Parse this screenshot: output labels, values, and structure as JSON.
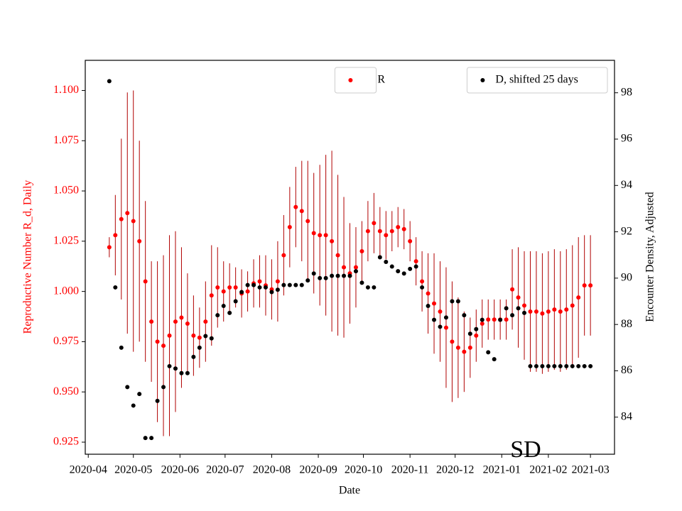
{
  "chart_data": {
    "type": "scatter",
    "annotation": "SD",
    "xlabel": "Date",
    "ylabel": "Reproductive Number R_d, Daily",
    "y2label": "Encounter Density, Adjusted",
    "xlim": [
      "2020-03-30",
      "2021-03-17"
    ],
    "xticks": [
      {
        "value": "2020-04-01",
        "label": "2020-04"
      },
      {
        "value": "2020-05-01",
        "label": "2020-05"
      },
      {
        "value": "2020-06-01",
        "label": "2020-06"
      },
      {
        "value": "2020-07-01",
        "label": "2020-07"
      },
      {
        "value": "2020-08-01",
        "label": "2020-08"
      },
      {
        "value": "2020-09-01",
        "label": "2020-09"
      },
      {
        "value": "2020-10-01",
        "label": "2020-10"
      },
      {
        "value": "2020-11-01",
        "label": "2020-11"
      },
      {
        "value": "2020-12-01",
        "label": "2020-12"
      },
      {
        "value": "2021-01-01",
        "label": "2021-01"
      },
      {
        "value": "2021-02-01",
        "label": "2021-02"
      },
      {
        "value": "2021-03-01",
        "label": "2021-03"
      }
    ],
    "ylim": [
      0.919,
      1.115
    ],
    "yticks": [
      0.925,
      {
        "value": 0.95,
        "label": "0.950"
      },
      0.975,
      {
        "value": 1,
        "label": "1.000"
      },
      1.025,
      {
        "value": 1.05,
        "label": "1.050"
      },
      1.075,
      {
        "value": 1.1,
        "label": "1.100"
      }
    ],
    "y2lim": [
      82.4,
      99.4
    ],
    "y2ticks": [
      84,
      86,
      88,
      90,
      92,
      94,
      96,
      98
    ],
    "x": [
      "2020-04-15",
      "2020-04-19",
      "2020-04-23",
      "2020-04-27",
      "2020-05-01",
      "2020-05-05",
      "2020-05-09",
      "2020-05-13",
      "2020-05-17",
      "2020-05-21",
      "2020-05-25",
      "2020-05-29",
      "2020-06-02",
      "2020-06-06",
      "2020-06-10",
      "2020-06-14",
      "2020-06-18",
      "2020-06-22",
      "2020-06-26",
      "2020-06-30",
      "2020-07-04",
      "2020-07-08",
      "2020-07-12",
      "2020-07-16",
      "2020-07-20",
      "2020-07-24",
      "2020-07-28",
      "2020-08-01",
      "2020-08-05",
      "2020-08-09",
      "2020-08-13",
      "2020-08-17",
      "2020-08-21",
      "2020-08-25",
      "2020-08-29",
      "2020-09-02",
      "2020-09-06",
      "2020-09-10",
      "2020-09-14",
      "2020-09-18",
      "2020-09-22",
      "2020-09-26",
      "2020-09-30",
      "2020-10-04",
      "2020-10-08",
      "2020-10-12",
      "2020-10-16",
      "2020-10-20",
      "2020-10-24",
      "2020-10-28",
      "2020-11-01",
      "2020-11-05",
      "2020-11-09",
      "2020-11-13",
      "2020-11-17",
      "2020-11-21",
      "2020-11-25",
      "2020-11-29",
      "2020-12-03",
      "2020-12-07",
      "2020-12-11",
      "2020-12-15",
      "2020-12-19",
      "2020-12-23",
      "2020-12-27",
      "2020-12-31",
      "2021-01-04",
      "2021-01-08",
      "2021-01-12",
      "2021-01-16",
      "2021-01-20",
      "2021-01-24",
      "2021-01-28",
      "2021-02-01",
      "2021-02-05",
      "2021-02-09",
      "2021-02-13",
      "2021-02-17",
      "2021-02-21",
      "2021-02-25",
      "2021-03-01"
    ],
    "series": [
      {
        "name": "R",
        "color": "#ff0000",
        "error_color": "#b00000",
        "axis": "y",
        "legend_loc": "upper center",
        "values": [
          1.022,
          1.028,
          1.036,
          1.039,
          1.035,
          1.025,
          1.005,
          0.985,
          0.975,
          0.973,
          0.978,
          0.985,
          0.987,
          0.984,
          0.978,
          0.977,
          0.985,
          0.998,
          1.002,
          1.0,
          1.002,
          1.002,
          0.999,
          1.0,
          1.004,
          1.005,
          1.003,
          1.001,
          1.005,
          1.018,
          1.032,
          1.042,
          1.04,
          1.035,
          1.029,
          1.028,
          1.028,
          1.025,
          1.018,
          1.012,
          1.009,
          1.012,
          1.02,
          1.03,
          1.034,
          1.03,
          1.028,
          1.03,
          1.032,
          1.031,
          1.025,
          1.015,
          1.005,
          0.999,
          0.994,
          0.99,
          0.982,
          0.975,
          0.972,
          0.97,
          0.972,
          0.978,
          0.984,
          0.986,
          0.986,
          0.986,
          0.986,
          1.001,
          0.997,
          0.993,
          0.99,
          0.99,
          0.989,
          0.99,
          0.991,
          0.99,
          0.991,
          0.993,
          0.997,
          1.003,
          1.003
        ],
        "errors": [
          0.005,
          0.02,
          0.04,
          0.06,
          0.065,
          0.05,
          0.04,
          0.03,
          0.04,
          0.045,
          0.05,
          0.045,
          0.035,
          0.025,
          0.02,
          0.015,
          0.02,
          0.025,
          0.02,
          0.015,
          0.012,
          0.01,
          0.012,
          0.01,
          0.012,
          0.013,
          0.015,
          0.015,
          0.02,
          0.02,
          0.02,
          0.02,
          0.025,
          0.03,
          0.03,
          0.035,
          0.04,
          0.045,
          0.04,
          0.035,
          0.025,
          0.02,
          0.015,
          0.015,
          0.015,
          0.012,
          0.012,
          0.01,
          0.01,
          0.01,
          0.01,
          0.012,
          0.015,
          0.02,
          0.025,
          0.025,
          0.03,
          0.03,
          0.025,
          0.02,
          0.015,
          0.013,
          0.012,
          0.01,
          0.01,
          0.01,
          0.01,
          0.02,
          0.025,
          0.027,
          0.03,
          0.03,
          0.03,
          0.03,
          0.03,
          0.03,
          0.03,
          0.03,
          0.03,
          0.025,
          0.025
        ]
      },
      {
        "name": "D, shifted 25 days",
        "color": "#000000",
        "axis": "y2",
        "legend_loc": "upper right",
        "values": [
          98.5,
          89.6,
          87.0,
          85.3,
          84.5,
          85.0,
          83.1,
          83.1,
          84.7,
          85.3,
          86.2,
          86.1,
          85.9,
          85.9,
          86.6,
          87.0,
          87.5,
          87.4,
          88.4,
          88.8,
          88.5,
          89.0,
          89.4,
          89.7,
          89.7,
          89.6,
          89.6,
          89.4,
          89.5,
          89.7,
          89.7,
          89.7,
          89.7,
          89.9,
          90.2,
          90.0,
          90.0,
          90.1,
          90.1,
          90.1,
          90.1,
          90.3,
          89.8,
          89.6,
          89.6,
          90.9,
          90.7,
          90.5,
          90.3,
          90.2,
          90.4,
          90.5,
          89.6,
          88.8,
          88.2,
          87.9,
          88.3,
          89.0,
          89.0,
          88.4,
          87.6,
          87.8,
          88.2,
          86.8,
          86.5,
          88.2,
          88.7,
          88.4,
          88.7,
          88.5,
          86.2,
          86.2,
          86.2,
          86.2,
          86.2,
          86.2,
          86.2,
          86.2,
          86.2,
          86.2,
          86.2
        ]
      }
    ]
  }
}
